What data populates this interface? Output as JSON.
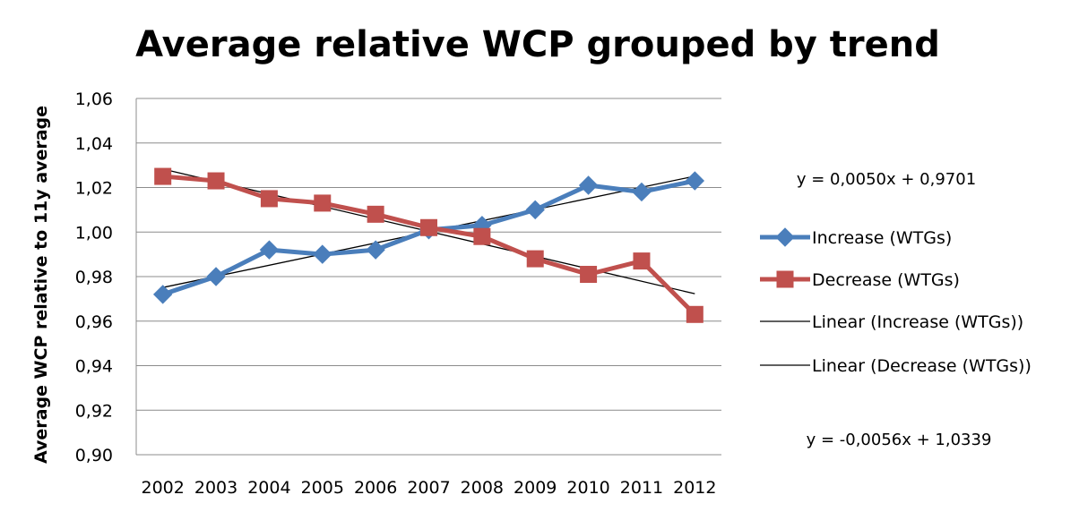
{
  "chart_data": {
    "type": "line",
    "title": "Average relative WCP grouped by trend",
    "xlabel": "",
    "ylabel": "Average WCP relative to 11y average",
    "categories": [
      "2002",
      "2003",
      "2004",
      "2005",
      "2006",
      "2007",
      "2008",
      "2009",
      "2010",
      "2011",
      "2012"
    ],
    "ylim": [
      0.9,
      1.06
    ],
    "y_ticks": [
      "0,90",
      "0,92",
      "0,94",
      "0,96",
      "0,98",
      "1,00",
      "1,02",
      "1,04",
      "1,06"
    ],
    "y_tick_values": [
      0.9,
      0.92,
      0.94,
      0.96,
      0.98,
      1.0,
      1.02,
      1.04,
      1.06
    ],
    "grid": "horizontal",
    "legend_position": "right",
    "series": [
      {
        "name": "Increase (WTGs)",
        "color": "#4a7ebb",
        "marker": "diamond",
        "values": [
          0.972,
          0.98,
          0.992,
          0.99,
          0.992,
          1.001,
          1.003,
          1.01,
          1.021,
          1.018,
          1.023
        ]
      },
      {
        "name": "Decrease (WTGs)",
        "color": "#c0504d",
        "marker": "square",
        "values": [
          1.025,
          1.023,
          1.015,
          1.013,
          1.008,
          1.002,
          0.998,
          0.988,
          0.981,
          0.987,
          0.963
        ]
      }
    ],
    "trendlines": [
      {
        "name": "Linear (Increase (WTGs))",
        "color": "#000000",
        "slope": 0.005,
        "intercept": 0.9701
      },
      {
        "name": "Linear (Decrease (WTGs))",
        "color": "#000000",
        "slope": -0.0056,
        "intercept": 1.0339
      }
    ],
    "equations": {
      "increase": "y = 0,0050x + 0,9701",
      "decrease": "y = -0,0056x + 1,0339"
    }
  }
}
